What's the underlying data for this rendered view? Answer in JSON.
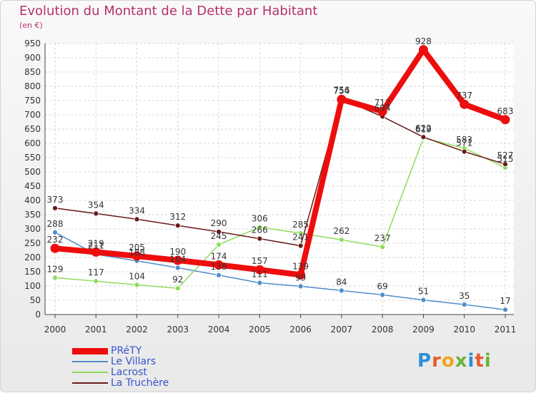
{
  "title": "Evolution du Montant de la Dette par Habitant",
  "subtitle": "(en €)",
  "logo": {
    "text": "Proxiti",
    "letter_colors": [
      "#2a8fd6",
      "#e95b2b",
      "#f2a31b",
      "#6ab43a",
      "#2a8fd6",
      "#e95b2b",
      "#6ab43a"
    ]
  },
  "chart_data": {
    "type": "line",
    "categories": [
      "2000",
      "2001",
      "2002",
      "2003",
      "2004",
      "2005",
      "2006",
      "2007",
      "2008",
      "2009",
      "2010",
      "2011"
    ],
    "ylim": [
      0,
      950
    ],
    "yticks": [
      0,
      50,
      100,
      150,
      200,
      250,
      300,
      350,
      400,
      450,
      500,
      550,
      600,
      650,
      700,
      750,
      800,
      850,
      900,
      950
    ],
    "grid": true,
    "legend_position": "bottom-left",
    "series": [
      {
        "name": "PRéTY",
        "color": "#ee0d0d",
        "values": [
          232,
          219,
          205,
          190,
          174,
          157,
          139,
          754,
          712,
          928,
          737,
          683
        ]
      },
      {
        "name": "Le Villars",
        "color": "#4f8dc9",
        "values": [
          288,
          211,
          188,
          164,
          138,
          111,
          99,
          84,
          69,
          51,
          35,
          17
        ]
      },
      {
        "name": "Lacrost",
        "color": "#8fdc5c",
        "values": [
          129,
          117,
          104,
          92,
          245,
          306,
          285,
          262,
          237,
          619,
          583,
          515
        ]
      },
      {
        "name": "La Truchère",
        "color": "#6b1a1a",
        "values": [
          373,
          354,
          334,
          312,
          290,
          266,
          241,
          756,
          694,
          622,
          571,
          527
        ]
      }
    ]
  }
}
